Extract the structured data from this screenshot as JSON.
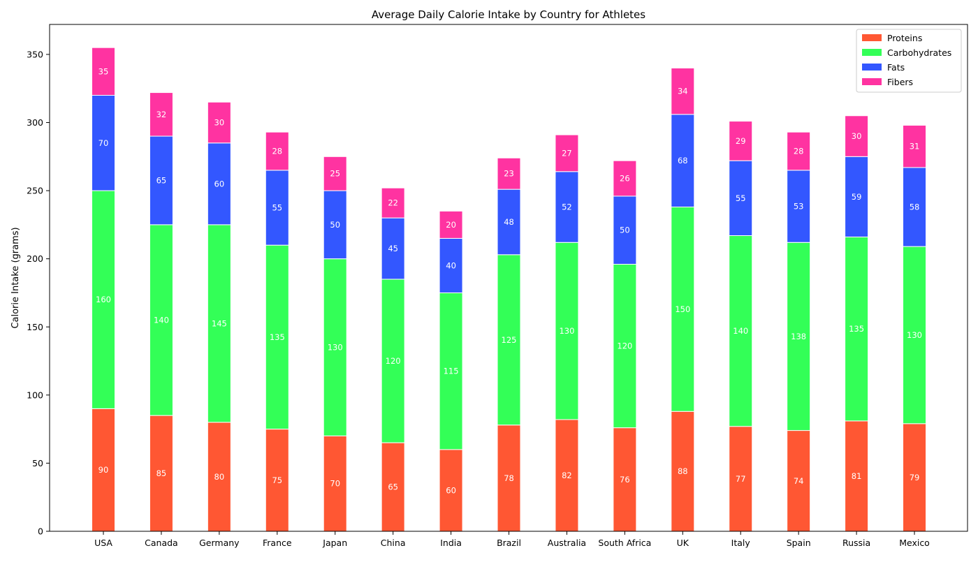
{
  "chart_data": {
    "type": "bar",
    "stacked": true,
    "title": "Average Daily Calorie Intake by Country for Athletes",
    "xlabel": "",
    "ylabel": "Calorie Intake (grams)",
    "ylim": [
      0,
      372
    ],
    "yticks": [
      0,
      50,
      100,
      150,
      200,
      250,
      300,
      350
    ],
    "categories": [
      "USA",
      "Canada",
      "Germany",
      "France",
      "Japan",
      "China",
      "India",
      "Brazil",
      "Australia",
      "South Africa",
      "UK",
      "Italy",
      "Spain",
      "Russia",
      "Mexico"
    ],
    "series": [
      {
        "name": "Proteins",
        "color": "#ff5733",
        "values": [
          90,
          85,
          80,
          75,
          70,
          65,
          60,
          78,
          82,
          76,
          88,
          77,
          74,
          81,
          79
        ]
      },
      {
        "name": "Carbohydrates",
        "color": "#33ff57",
        "values": [
          160,
          140,
          145,
          135,
          130,
          120,
          115,
          125,
          130,
          120,
          150,
          140,
          138,
          135,
          130
        ]
      },
      {
        "name": "Fats",
        "color": "#3357ff",
        "values": [
          70,
          65,
          60,
          55,
          50,
          45,
          40,
          48,
          52,
          50,
          68,
          55,
          53,
          59,
          58
        ]
      },
      {
        "name": "Fibers",
        "color": "#ff33a1",
        "values": [
          35,
          32,
          30,
          28,
          25,
          22,
          20,
          23,
          27,
          26,
          34,
          29,
          28,
          30,
          31
        ]
      }
    ],
    "grid": false,
    "legend_position": "top-right",
    "data_labels": true
  }
}
